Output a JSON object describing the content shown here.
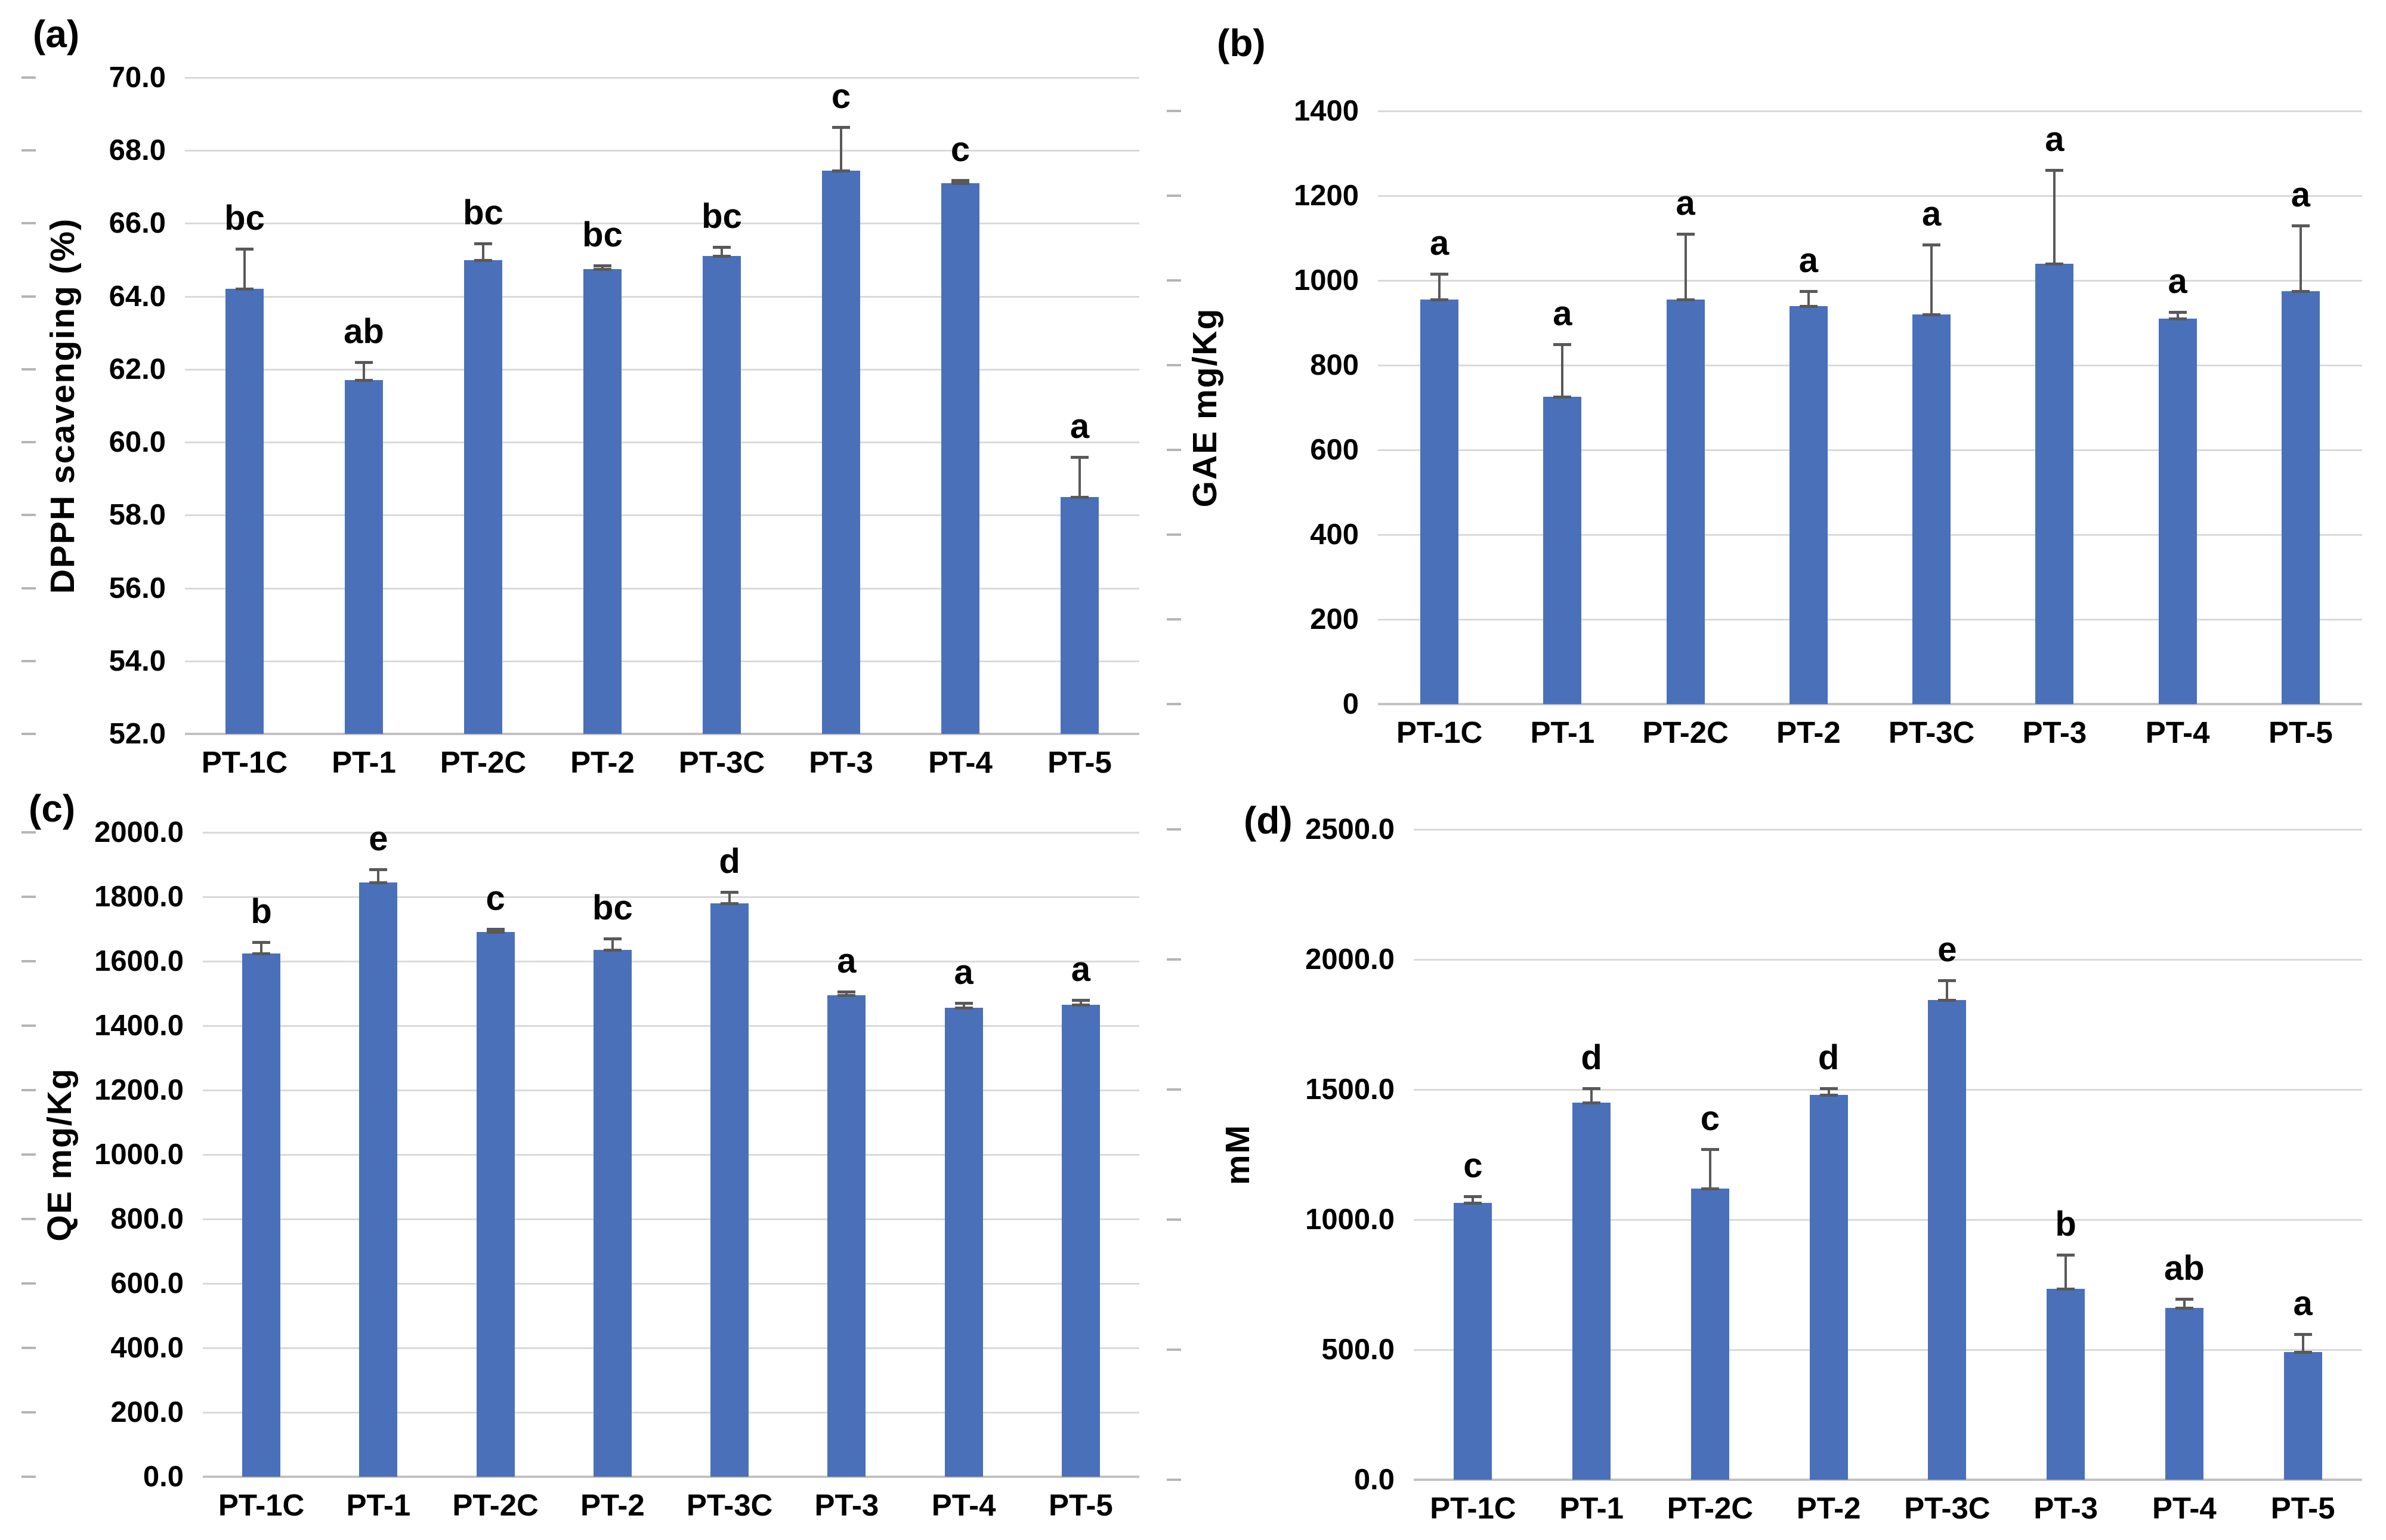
{
  "figure": {
    "background": "#ffffff"
  },
  "style": {
    "bar_color": "#4a70ba",
    "error_bar_color": "#595959",
    "gridline_color": "#dadada",
    "baseline_color": "#c2c2c2",
    "text_color": "#000000"
  },
  "chart_data": [
    {
      "id": "a",
      "panel_label": "(a)",
      "type": "bar",
      "title": "",
      "xlabel": "",
      "ylabel": "DPPH scavenging (%)",
      "ylim": [
        52.0,
        70.0
      ],
      "ytick_step": 2.0,
      "grid": true,
      "legend_position": "none",
      "ytick_labels": [
        "70.0",
        "68.0",
        "66.0",
        "64.0",
        "62.0",
        "60.0",
        "58.0",
        "56.0",
        "54.0",
        "52.0"
      ],
      "categories": [
        "PT-1C",
        "PT-1",
        "PT-2C",
        "PT-2",
        "PT-3C",
        "PT-3",
        "PT-4",
        "PT-5"
      ],
      "values": [
        64.2,
        61.7,
        65.0,
        64.75,
        65.1,
        67.45,
        67.1,
        58.5
      ],
      "errors": [
        1.1,
        0.5,
        0.45,
        0.1,
        0.25,
        1.2,
        0.08,
        1.1
      ],
      "sig_letters": [
        "bc",
        "ab",
        "bc",
        "bc",
        "bc",
        "c",
        "c",
        "a"
      ]
    },
    {
      "id": "b",
      "panel_label": "(b)",
      "type": "bar",
      "title": "",
      "xlabel": "",
      "ylabel": "GAE mg/Kg",
      "ylim": [
        0,
        1400
      ],
      "ytick_step": 200,
      "grid": true,
      "legend_position": "none",
      "ytick_labels": [
        "1400",
        "1200",
        "1000",
        "800",
        "600",
        "400",
        "200",
        "0"
      ],
      "categories": [
        "PT-1C",
        "PT-1",
        "PT-2C",
        "PT-2",
        "PT-3C",
        "PT-3",
        "PT-4",
        "PT-5"
      ],
      "values": [
        955,
        725,
        955,
        940,
        920,
        1040,
        910,
        975
      ],
      "errors": [
        60,
        125,
        155,
        35,
        165,
        220,
        15,
        155
      ],
      "sig_letters": [
        "a",
        "a",
        "a",
        "a",
        "a",
        "a",
        "a",
        "a"
      ]
    },
    {
      "id": "c",
      "panel_label": "(c)",
      "type": "bar",
      "title": "",
      "xlabel": "",
      "ylabel": "QE mg/Kg",
      "ylim": [
        0.0,
        2000.0
      ],
      "ytick_step": 200.0,
      "grid": true,
      "legend_position": "none",
      "ytick_labels": [
        "2000.0",
        "1800.0",
        "1600.0",
        "1400.0",
        "1200.0",
        "1000.0",
        "800.0",
        "600.0",
        "400.0",
        "200.0",
        "0.0"
      ],
      "categories": [
        "PT-1C",
        "PT-1",
        "PT-2C",
        "PT-2",
        "PT-3C",
        "PT-3",
        "PT-4",
        "PT-5"
      ],
      "values": [
        1625,
        1845,
        1690,
        1635,
        1780,
        1495,
        1455,
        1465
      ],
      "errors": [
        35,
        40,
        10,
        35,
        35,
        10,
        15,
        15
      ],
      "sig_letters": [
        "b",
        "e",
        "c",
        "bc",
        "d",
        "a",
        "a",
        "a"
      ]
    },
    {
      "id": "d",
      "panel_label": "(d)",
      "type": "bar",
      "title": "",
      "xlabel": "",
      "ylabel": "mM",
      "ylim": [
        0.0,
        2500.0
      ],
      "ytick_step": 500.0,
      "grid": true,
      "legend_position": "none",
      "ytick_labels": [
        "2500.0",
        "2000.0",
        "1500.0",
        "1000.0",
        "500.0",
        "0.0"
      ],
      "categories": [
        "PT-1C",
        "PT-1",
        "PT-2C",
        "PT-2",
        "PT-3C",
        "PT-3",
        "PT-4",
        "PT-5"
      ],
      "values": [
        1065,
        1450,
        1120,
        1480,
        1845,
        735,
        660,
        490
      ],
      "errors": [
        25,
        55,
        150,
        25,
        75,
        130,
        35,
        70
      ],
      "sig_letters": [
        "c",
        "d",
        "c",
        "d",
        "e",
        "b",
        "ab",
        "a"
      ]
    }
  ]
}
